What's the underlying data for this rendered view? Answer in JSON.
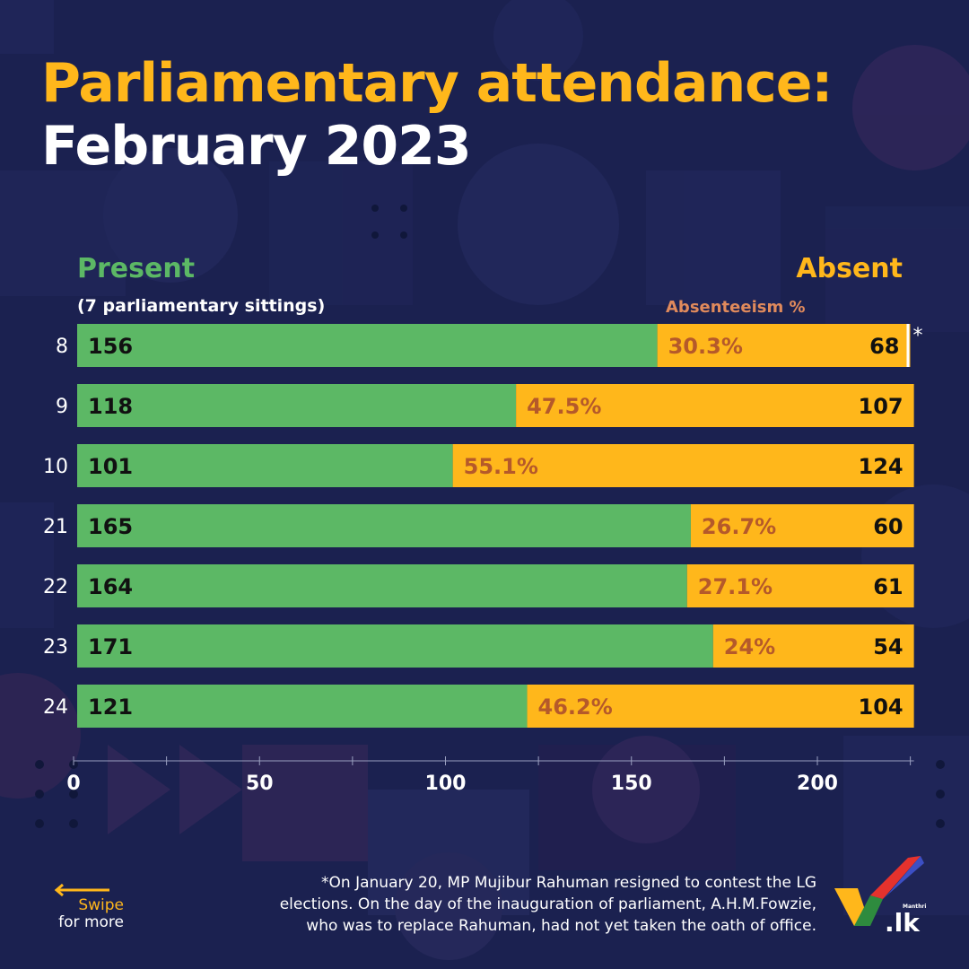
{
  "header": {
    "title_line1": "Parliamentary attendance:",
    "title_line2": "February 2023"
  },
  "legend": {
    "present": "Present",
    "absent": "Absent",
    "sittings_note": "(7 parliamentary sittings)",
    "absenteeism_label": "Absenteeism %"
  },
  "chart_data": {
    "type": "bar",
    "orientation": "horizontal",
    "stacked": true,
    "categories": [
      "8",
      "9",
      "10",
      "21",
      "22",
      "23",
      "24"
    ],
    "series": [
      {
        "name": "Present",
        "values": [
          156,
          118,
          101,
          165,
          164,
          171,
          121
        ],
        "color": "#5cb865"
      },
      {
        "name": "Absent",
        "values": [
          68,
          107,
          124,
          60,
          61,
          54,
          104
        ],
        "color": "#ffb71b"
      }
    ],
    "absenteeism_pct": [
      "30.3%",
      "47.5%",
      "55.1%",
      "26.7%",
      "27.1%",
      "24%",
      "46.2%"
    ],
    "xticks": [
      0,
      50,
      100,
      150,
      200
    ],
    "xlim": [
      0,
      225
    ],
    "asterisk_row": "8",
    "asterisk_mark": "*",
    "pct_color": "#b5592a"
  },
  "footnote": "*On January 20, MP Mujibur Rahuman resigned to contest the LG elections. On the day of the inauguration of parliament, A.H.M.Fowzie, who was to replace Rahuman, had not yet taken the oath of office.",
  "swipe": {
    "line1": "Swipe",
    "line2": "for more"
  },
  "logo": {
    "small_text": "Manthri",
    "main_text": ".lk"
  }
}
